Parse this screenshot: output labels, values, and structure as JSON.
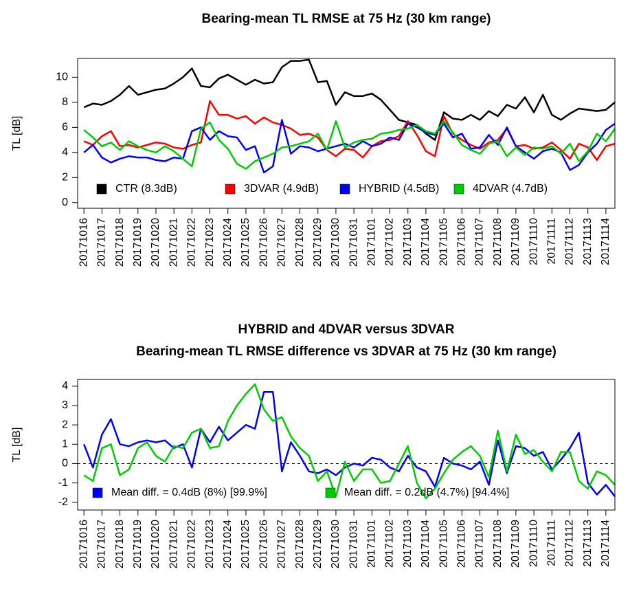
{
  "chart_data": [
    {
      "type": "line",
      "title": "Bearing-mean TL RMSE at 75 Hz (30 km range)",
      "y_label": "TL [dB]",
      "x": [
        0,
        0.5,
        1,
        1.5,
        2,
        2.5,
        3,
        3.5,
        4,
        4.5,
        5,
        5.5,
        6,
        6.5,
        7,
        7.5,
        8,
        8.5,
        9,
        9.5,
        10,
        10.5,
        11,
        11.5,
        12,
        12.5,
        13,
        13.5,
        14,
        14.5,
        15,
        15.5,
        16,
        16.5,
        17,
        17.5,
        18,
        18.5,
        19,
        19.5,
        20,
        20.5,
        21,
        21.5,
        22,
        22.5,
        23,
        23.5,
        24,
        24.5,
        25,
        25.5,
        26,
        26.5,
        27,
        27.5,
        28,
        28.5,
        29,
        29.5
      ],
      "xlim": [
        -0.35,
        29.5
      ],
      "xticks": [
        {
          "value": 0,
          "label": "20171016"
        },
        {
          "value": 1,
          "label": "20171017"
        },
        {
          "value": 2,
          "label": "20171018"
        },
        {
          "value": 3,
          "label": "20171019"
        },
        {
          "value": 4,
          "label": "20171020"
        },
        {
          "value": 5,
          "label": "20171021"
        },
        {
          "value": 6,
          "label": "20171022"
        },
        {
          "value": 7,
          "label": "20171023"
        },
        {
          "value": 8,
          "label": "20171024"
        },
        {
          "value": 9,
          "label": "20171025"
        },
        {
          "value": 10,
          "label": "20171026"
        },
        {
          "value": 11,
          "label": "20171027"
        },
        {
          "value": 12,
          "label": "20171028"
        },
        {
          "value": 13,
          "label": "20171029"
        },
        {
          "value": 14,
          "label": "20171030"
        },
        {
          "value": 15,
          "label": "20171031"
        },
        {
          "value": 16,
          "label": "20171101"
        },
        {
          "value": 17,
          "label": "20171102"
        },
        {
          "value": 18,
          "label": "20171103"
        },
        {
          "value": 19,
          "label": "20171104"
        },
        {
          "value": 20,
          "label": "20171105"
        },
        {
          "value": 21,
          "label": "20171106"
        },
        {
          "value": 22,
          "label": "20171107"
        },
        {
          "value": 23,
          "label": "20171108"
        },
        {
          "value": 24,
          "label": "20171109"
        },
        {
          "value": 25,
          "label": "20171110"
        },
        {
          "value": 26,
          "label": "20171111"
        },
        {
          "value": 27,
          "label": "20171112"
        },
        {
          "value": 28,
          "label": "20171113"
        },
        {
          "value": 29,
          "label": "20171114"
        }
      ],
      "ylim": [
        -0.45,
        11.5
      ],
      "yticks": [
        0,
        2,
        4,
        6,
        8,
        10
      ],
      "legend": "bottom",
      "series": [
        {
          "name": "CTR (8.3dB)",
          "color": "#000000",
          "values": [
            7.6,
            7.9,
            7.8,
            8.1,
            8.6,
            9.3,
            8.6,
            8.8,
            9.0,
            9.1,
            9.5,
            10.0,
            10.7,
            9.3,
            9.2,
            9.9,
            10.2,
            9.8,
            9.4,
            9.8,
            9.5,
            9.6,
            10.8,
            11.3,
            11.3,
            11.4,
            9.6,
            9.7,
            7.8,
            8.8,
            8.5,
            8.5,
            8.7,
            8.2,
            7.4,
            6.6,
            6.4,
            6.2,
            5.5,
            5.0,
            7.2,
            6.7,
            6.6,
            7.0,
            6.6,
            7.3,
            6.9,
            7.8,
            7.5,
            8.4,
            7.2,
            8.6,
            7.0,
            6.6,
            7.1,
            7.5,
            7.4,
            7.3,
            7.4,
            8.0
          ]
        },
        {
          "name": "3DVAR (4.9dB)",
          "color": "#ff0000",
          "values": [
            4.9,
            4.6,
            5.3,
            5.7,
            4.5,
            4.6,
            4.4,
            4.6,
            4.8,
            4.7,
            4.4,
            4.3,
            4.6,
            4.8,
            8.1,
            7.0,
            7.0,
            6.7,
            6.9,
            6.3,
            6.8,
            6.4,
            6.2,
            5.9,
            5.4,
            5.5,
            5.2,
            4.2,
            3.7,
            4.3,
            4.2,
            3.6,
            4.5,
            4.9,
            5.0,
            5.3,
            6.5,
            5.4,
            4.1,
            3.7,
            6.9,
            5.5,
            5.0,
            4.6,
            4.3,
            4.8,
            5.0,
            5.9,
            4.5,
            4.6,
            4.3,
            4.4,
            4.8,
            4.2,
            3.5,
            4.7,
            4.4,
            3.4,
            4.5,
            4.7
          ]
        },
        {
          "name": "HYBRID (4.5dB)",
          "color": "#0000ff",
          "values": [
            4.0,
            4.6,
            3.6,
            3.2,
            3.5,
            3.7,
            3.6,
            3.6,
            3.4,
            3.3,
            3.6,
            3.5,
            5.7,
            6.0,
            5.0,
            5.7,
            5.3,
            5.2,
            4.2,
            4.5,
            2.4,
            2.9,
            6.6,
            3.9,
            4.5,
            4.4,
            4.1,
            4.3,
            4.5,
            4.7,
            4.4,
            4.9,
            4.5,
            4.7,
            5.2,
            5.0,
            6.3,
            6.0,
            5.6,
            5.4,
            6.3,
            5.2,
            5.5,
            4.3,
            4.4,
            5.4,
            4.6,
            6.0,
            4.5,
            4.0,
            3.5,
            4.1,
            4.3,
            4.0,
            2.6,
            3.0,
            4.0,
            4.7,
            5.8,
            6.3
          ]
        },
        {
          "name": "4DVAR (4.7dB)",
          "color": "#00cd00",
          "values": [
            5.8,
            5.2,
            4.5,
            4.8,
            4.2,
            4.9,
            4.5,
            4.2,
            4.0,
            4.5,
            4.1,
            3.5,
            2.9,
            5.9,
            6.4,
            5.0,
            4.3,
            3.1,
            2.7,
            3.3,
            3.6,
            3.9,
            4.4,
            4.5,
            4.7,
            4.9,
            5.5,
            4.2,
            6.5,
            4.4,
            4.8,
            5.0,
            5.1,
            5.5,
            5.6,
            5.8,
            5.9,
            6.2,
            5.7,
            5.5,
            6.5,
            5.6,
            4.6,
            4.2,
            3.9,
            4.7,
            4.9,
            3.7,
            4.4,
            3.8,
            4.4,
            4.3,
            4.5,
            3.9,
            4.7,
            3.3,
            4.1,
            5.5,
            4.9,
            5.9
          ]
        }
      ]
    },
    {
      "type": "line",
      "title": "HYBRID and 4DVAR versus 3DVAR",
      "subtitle": "Bearing-mean TL RMSE difference vs 3DVAR at 75 Hz (30 km range)",
      "y_label": "TL [dB]",
      "x": [
        0,
        0.5,
        1,
        1.5,
        2,
        2.5,
        3,
        3.5,
        4,
        4.5,
        5,
        5.5,
        6,
        6.5,
        7,
        7.5,
        8,
        8.5,
        9,
        9.5,
        10,
        10.5,
        11,
        11.5,
        12,
        12.5,
        13,
        13.5,
        14,
        14.5,
        15,
        15.5,
        16,
        16.5,
        17,
        17.5,
        18,
        18.5,
        19,
        19.5,
        20,
        20.5,
        21,
        21.5,
        22,
        22.5,
        23,
        23.5,
        24,
        24.5,
        25,
        25.5,
        26,
        26.5,
        27,
        27.5,
        28,
        28.5,
        29,
        29.5
      ],
      "xlim": [
        -0.35,
        29.5
      ],
      "xticks": [
        {
          "value": 0,
          "label": "20171016"
        },
        {
          "value": 1,
          "label": "20171017"
        },
        {
          "value": 2,
          "label": "20171018"
        },
        {
          "value": 3,
          "label": "20171019"
        },
        {
          "value": 4,
          "label": "20171020"
        },
        {
          "value": 5,
          "label": "20171021"
        },
        {
          "value": 6,
          "label": "20171022"
        },
        {
          "value": 7,
          "label": "20171023"
        },
        {
          "value": 8,
          "label": "20171024"
        },
        {
          "value": 9,
          "label": "20171025"
        },
        {
          "value": 10,
          "label": "20171026"
        },
        {
          "value": 11,
          "label": "20171027"
        },
        {
          "value": 12,
          "label": "20171028"
        },
        {
          "value": 13,
          "label": "20171029"
        },
        {
          "value": 14,
          "label": "20171030"
        },
        {
          "value": 15,
          "label": "20171031"
        },
        {
          "value": 16,
          "label": "20171101"
        },
        {
          "value": 17,
          "label": "20171102"
        },
        {
          "value": 18,
          "label": "20171103"
        },
        {
          "value": 19,
          "label": "20171104"
        },
        {
          "value": 20,
          "label": "20171105"
        },
        {
          "value": 21,
          "label": "20171106"
        },
        {
          "value": 22,
          "label": "20171107"
        },
        {
          "value": 23,
          "label": "20171108"
        },
        {
          "value": 24,
          "label": "20171109"
        },
        {
          "value": 25,
          "label": "20171110"
        },
        {
          "value": 26,
          "label": "20171111"
        },
        {
          "value": 27,
          "label": "20171112"
        },
        {
          "value": 28,
          "label": "20171113"
        },
        {
          "value": 29,
          "label": "20171114"
        }
      ],
      "ylim": [
        -2.4,
        4.35
      ],
      "yticks": [
        -2,
        -1,
        0,
        1,
        2,
        3,
        4
      ],
      "reference_line": 0,
      "legend": "bottom",
      "series": [
        {
          "name": "Mean diff. = 0.4dB (8%) [99.9%]",
          "color": "#0000ff",
          "values": [
            1.0,
            -0.2,
            1.5,
            2.3,
            1.0,
            0.9,
            1.1,
            1.2,
            1.1,
            1.2,
            0.8,
            1.0,
            -0.2,
            1.8,
            1.1,
            1.9,
            1.2,
            1.6,
            2.0,
            1.8,
            3.7,
            3.7,
            -0.4,
            1.1,
            0.4,
            -0.4,
            -0.5,
            -0.3,
            -0.6,
            -0.2,
            0.0,
            -0.1,
            0.3,
            0.2,
            -0.2,
            -0.4,
            0.4,
            -0.2,
            -0.4,
            -1.2,
            0.3,
            0.0,
            -0.1,
            -0.3,
            0.1,
            -1.1,
            1.2,
            -0.5,
            0.9,
            0.8,
            0.4,
            0.6,
            -0.3,
            0.2,
            0.8,
            1.6,
            -1.0,
            -1.6,
            -1.1,
            -1.7
          ]
        },
        {
          "name": "Mean diff. = 0.2dB (4.7%) [94.4%]",
          "color": "#00cd00",
          "values": [
            -0.6,
            -0.9,
            0.8,
            1.0,
            -0.6,
            -0.3,
            0.8,
            1.1,
            0.4,
            0.1,
            0.9,
            0.8,
            1.6,
            1.8,
            0.8,
            0.9,
            2.2,
            3.0,
            3.6,
            4.1,
            2.8,
            2.2,
            2.4,
            1.4,
            0.8,
            0.4,
            -0.9,
            -0.4,
            -1.7,
            0.1,
            -0.9,
            -0.3,
            -0.3,
            -1.0,
            -0.9,
            0.0,
            0.9,
            -1.0,
            -1.8,
            -1.3,
            -0.5,
            0.2,
            0.6,
            0.9,
            0.4,
            -0.7,
            1.7,
            -0.4,
            1.5,
            0.5,
            0.7,
            0.1,
            -0.4,
            0.6,
            0.6,
            -0.9,
            -1.3,
            -0.4,
            -0.6,
            -1.1
          ]
        }
      ]
    }
  ]
}
